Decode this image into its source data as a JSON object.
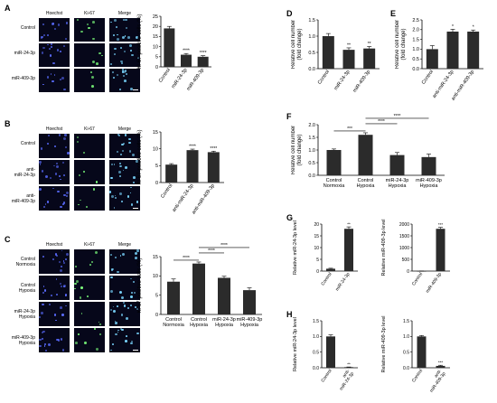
{
  "colors": {
    "bar": "#2b2b2b",
    "hoechst": "#5a6cff",
    "ki67": "#7cff7c",
    "merge": "#7ad6ff",
    "micro_bg": "#06071a"
  },
  "panels": {
    "A": {
      "letter": "A",
      "headers": [
        "Hoechst",
        "Ki-67",
        "Merge"
      ],
      "rows": [
        "Control",
        "miR-24-3p",
        "miR-409-3p"
      ]
    },
    "B": {
      "letter": "B",
      "headers": [
        "Hoechst",
        "Ki-67",
        "Merge"
      ],
      "rows": [
        "Control",
        "anti-\nmiR-24-3p",
        "anti-\nmiR-409-3p"
      ]
    },
    "C": {
      "letter": "C",
      "headers": [
        "Hoechst",
        "Ki-67",
        "Merge"
      ],
      "rows": [
        "Control\nNormoxia",
        "Control\nHypoxia",
        "miR-24-3p\nHypoxia",
        "miR-409-3p\nHypoxia"
      ]
    },
    "D": {
      "letter": "D"
    },
    "E": {
      "letter": "E"
    },
    "F": {
      "letter": "F"
    },
    "G": {
      "letter": "G"
    },
    "H": {
      "letter": "H"
    }
  },
  "chart_data": [
    {
      "id": "A",
      "type": "bar",
      "categories": [
        "Control",
        "miR-24-3p",
        "miR-409-3p"
      ],
      "values": [
        19,
        6,
        5
      ],
      "errors": [
        1,
        0.6,
        0.5
      ],
      "sig": [
        "",
        "****",
        "****"
      ],
      "ylabel": "Ki-67-positive cells (%)",
      "ylim": [
        0,
        25
      ],
      "yticks": [
        0,
        5,
        10,
        15,
        20,
        25
      ]
    },
    {
      "id": "B",
      "type": "bar",
      "categories": [
        "Control",
        "anti-miR-24-3p",
        "anti-miR-409-3p"
      ],
      "values": [
        5.3,
        9.6,
        9.0
      ],
      "errors": [
        0.3,
        0.3,
        0.3
      ],
      "sig": [
        "",
        "****",
        "****"
      ],
      "ylabel": "Ki-67-positive cells (%)",
      "ylim": [
        0,
        15
      ],
      "yticks": [
        0,
        5,
        10,
        15
      ]
    },
    {
      "id": "C",
      "type": "bar",
      "categories": [
        "Control\nNormoxia",
        "Control\nHypoxia",
        "miR-24-3p\nHypoxia",
        "miR-409-3p\nHypoxia"
      ],
      "values": [
        8.5,
        13.2,
        9.5,
        6.3
      ],
      "errors": [
        0.7,
        0.4,
        0.4,
        0.6
      ],
      "sig": [],
      "brackets": [
        {
          "from": 0,
          "to": 1,
          "label": "****"
        },
        {
          "from": 1,
          "to": 2,
          "label": "****"
        },
        {
          "from": 1,
          "to": 3,
          "label": "****"
        }
      ],
      "ylabel": "Ki-67-positive cells (%)",
      "ylim": [
        0,
        15
      ],
      "yticks": [
        0,
        5,
        10,
        15
      ]
    },
    {
      "id": "D",
      "type": "bar",
      "categories": [
        "Control",
        "miR-24-3p",
        "miR-409-3p"
      ],
      "values": [
        1.0,
        0.58,
        0.62
      ],
      "errors": [
        0.08,
        0.06,
        0.06
      ],
      "sig": [
        "",
        "**",
        "**"
      ],
      "ylabel": "Relative cell number\n(fold change)",
      "ylim": [
        0,
        1.5
      ],
      "yticks": [
        0.0,
        0.5,
        1.0,
        1.5
      ]
    },
    {
      "id": "E",
      "type": "bar",
      "categories": [
        "Control",
        "anti-miR-24-3p",
        "anti-miR-409-3p"
      ],
      "values": [
        1.0,
        1.9,
        1.9
      ],
      "errors": [
        0.18,
        0.12,
        0.08
      ],
      "sig": [
        "",
        "*",
        "*"
      ],
      "ylabel": "Relative cell number\n(fold change)",
      "ylim": [
        0,
        2.5
      ],
      "yticks": [
        0.0,
        0.5,
        1.0,
        1.5,
        2.0,
        2.5
      ]
    },
    {
      "id": "F",
      "type": "bar",
      "categories": [
        "Control\nNormoxia",
        "Control\nHypoxia",
        "miR-24-3p\nHypoxia",
        "miR-409-3p\nHypoxia"
      ],
      "values": [
        1.0,
        1.6,
        0.8,
        0.72
      ],
      "errors": [
        0.04,
        0.08,
        0.1,
        0.12
      ],
      "sig": [],
      "brackets": [
        {
          "from": 0,
          "to": 1,
          "label": "***"
        },
        {
          "from": 1,
          "to": 2,
          "label": "****"
        },
        {
          "from": 1,
          "to": 3,
          "label": "****"
        }
      ],
      "ylabel": "Relative cell number\n(fold change)",
      "ylim": [
        0,
        2.0
      ],
      "yticks": [
        0.0,
        0.5,
        1.0,
        1.5,
        2.0
      ]
    },
    {
      "id": "G1",
      "type": "bar",
      "categories": [
        "Control",
        "miR-24-3p"
      ],
      "values": [
        1,
        18
      ],
      "errors": [
        0.2,
        0.8
      ],
      "sig": [
        "",
        "**"
      ],
      "ylabel": "Relative miR-24-3p level",
      "ylim": [
        0,
        20
      ],
      "yticks": [
        0,
        5,
        10,
        15,
        20
      ]
    },
    {
      "id": "G2",
      "type": "bar",
      "categories": [
        "Control",
        "miR-409-3p"
      ],
      "values": [
        1,
        1800
      ],
      "errors": [
        0.5,
        60
      ],
      "sig": [
        "",
        "***"
      ],
      "ylabel": "Relative miR-409-3p level",
      "ylim": [
        0,
        2000
      ],
      "yticks": [
        0,
        500,
        1000,
        1500,
        2000
      ]
    },
    {
      "id": "H1",
      "type": "bar",
      "categories": [
        "Control",
        "anti-\nmiR-24-3p"
      ],
      "values": [
        1.0,
        0.02
      ],
      "errors": [
        0.05,
        0.005
      ],
      "sig": [
        "",
        "**"
      ],
      "ylabel": "Relative miR-24-3p level",
      "ylim": [
        0,
        1.5
      ],
      "yticks": [
        0.0,
        0.5,
        1.0,
        1.5
      ]
    },
    {
      "id": "H2",
      "type": "bar",
      "categories": [
        "Control",
        "anti-\nmiR-409-3p"
      ],
      "values": [
        1.0,
        0.06
      ],
      "errors": [
        0.03,
        0.02
      ],
      "sig": [
        "",
        "***"
      ],
      "ylabel": "Relative miR-409-3p level",
      "ylim": [
        0,
        1.5
      ],
      "yticks": [
        0.0,
        0.5,
        1.0,
        1.5
      ]
    }
  ]
}
